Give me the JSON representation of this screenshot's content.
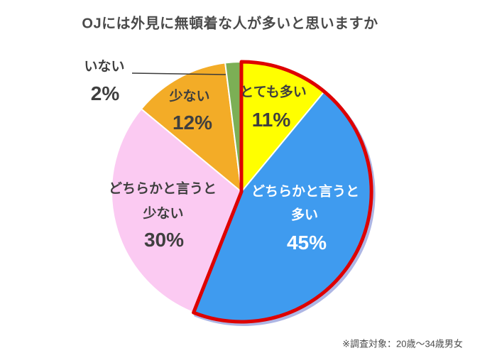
{
  "title": "OJには外見に無頓着な人が多いと思いますか",
  "footnote": "※調査対象：20歳〜34歳男女",
  "chart_data": {
    "type": "pie",
    "title": "OJには外見に無頓着な人が多いと思いますか",
    "footnote": "※調査対象：20歳〜34歳男女",
    "start_angle_deg": 0,
    "direction": "clockwise",
    "total": 100,
    "legend": "none",
    "slices": [
      {
        "id": "very-many",
        "label": "とても多い",
        "label_lines": [
          "とても多い"
        ],
        "value": 11,
        "pct_label": "11%",
        "color": "#FFFF00",
        "text_color": "#3F3F3F",
        "highlighted": true
      },
      {
        "id": "somewhat-many",
        "label": "どちらかと言うと多い",
        "label_lines": [
          "どちらかと言うと",
          "多い"
        ],
        "value": 45,
        "pct_label": "45%",
        "color": "#3F9BEF",
        "text_color": "#FFFFFF",
        "highlighted": true
      },
      {
        "id": "somewhat-few",
        "label": "どちらかと言うと少ない",
        "label_lines": [
          "どちらかと言うと",
          "少ない"
        ],
        "value": 30,
        "pct_label": "30%",
        "color": "#FBCAF2",
        "text_color": "#3F3F3F",
        "highlighted": false
      },
      {
        "id": "few",
        "label": "少ない",
        "label_lines": [
          "少ない"
        ],
        "value": 12,
        "pct_label": "12%",
        "color": "#F3AC27",
        "text_color": "#3F3F3F",
        "highlighted": false
      },
      {
        "id": "none",
        "label": "いない",
        "label_lines": [
          "いない"
        ],
        "value": 2,
        "pct_label": "2%",
        "color": "#7CAF55",
        "text_color": "#3F3F3F",
        "highlighted": false,
        "callout": true
      }
    ],
    "colors": {
      "highlight_outline": "#DE0000",
      "slice_border": "#FFFFFF",
      "shadow": "#AEB6E4",
      "leader_line": "#3A3A3A",
      "title_text": "#4A4A4A",
      "label_text": "#3F3F3F"
    }
  }
}
